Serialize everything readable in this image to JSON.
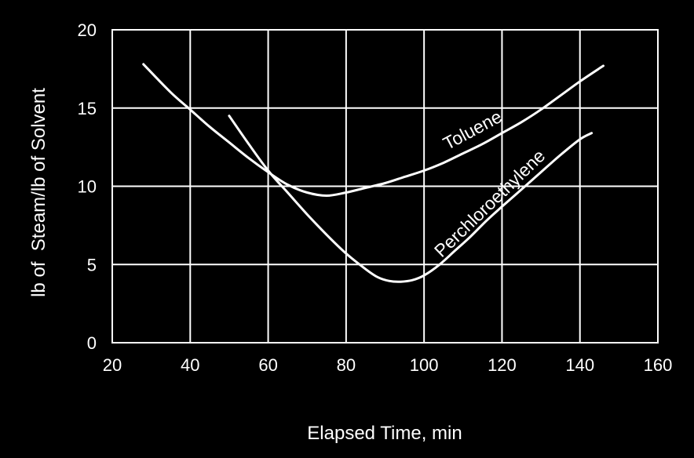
{
  "chart_data": {
    "type": "line",
    "title": "",
    "xlabel": "Elapsed Time, min",
    "ylabel": "lb of  Steam/lb of Solvent",
    "xlim": [
      20,
      160
    ],
    "ylim": [
      0,
      20
    ],
    "xticks": [
      20,
      40,
      60,
      80,
      100,
      120,
      140,
      160
    ],
    "yticks": [
      0,
      5,
      10,
      15,
      20
    ],
    "grid": true,
    "legend": "none",
    "series": [
      {
        "name": "Toluene",
        "x": [
          28,
          35,
          40,
          45,
          50,
          55,
          60,
          65,
          70,
          75,
          80,
          85,
          90,
          95,
          100,
          105,
          110,
          115,
          120,
          125,
          130,
          135,
          140,
          146
        ],
        "y": [
          17.8,
          16.0,
          14.9,
          13.8,
          12.8,
          11.8,
          10.9,
          10.1,
          9.6,
          9.4,
          9.6,
          9.9,
          10.2,
          10.6,
          11.0,
          11.5,
          12.1,
          12.7,
          13.4,
          14.1,
          14.9,
          15.8,
          16.7,
          17.7
        ]
      },
      {
        "name": "Perchloroethylene",
        "x": [
          50,
          55,
          60,
          65,
          70,
          75,
          80,
          85,
          88,
          91,
          94,
          97,
          100,
          104,
          108,
          112,
          116,
          120,
          125,
          130,
          135,
          140,
          143
        ],
        "y": [
          14.5,
          12.7,
          11.0,
          9.6,
          8.2,
          6.9,
          5.7,
          4.7,
          4.2,
          3.95,
          3.9,
          4.0,
          4.3,
          5.0,
          5.9,
          6.8,
          7.8,
          8.7,
          9.8,
          10.9,
          12.0,
          13.0,
          13.4
        ]
      }
    ]
  }
}
